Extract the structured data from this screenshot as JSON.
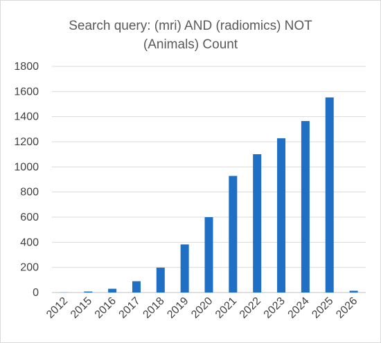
{
  "chart_data": {
    "type": "bar",
    "title_lines": [
      "Search query: (mri) AND (radiomics) NOT",
      "(Animals) Count"
    ],
    "xlabel": "",
    "ylabel": "",
    "categories": [
      "2012",
      "2015",
      "2016",
      "2017",
      "2018",
      "2019",
      "2020",
      "2021",
      "2022",
      "2023",
      "2024",
      "2025",
      "2026"
    ],
    "values": [
      1,
      8,
      30,
      90,
      198,
      383,
      600,
      928,
      1101,
      1228,
      1365,
      1553,
      14
    ],
    "ylim": [
      0,
      1800
    ],
    "yticks": [
      0,
      200,
      400,
      600,
      800,
      1000,
      1200,
      1400,
      1600,
      1800
    ],
    "grid": true,
    "legend": "none",
    "colors": {
      "bar": "#1f6fc5",
      "grid": "#d9d9d9",
      "title": "#595959",
      "ticks": "#404040"
    }
  }
}
